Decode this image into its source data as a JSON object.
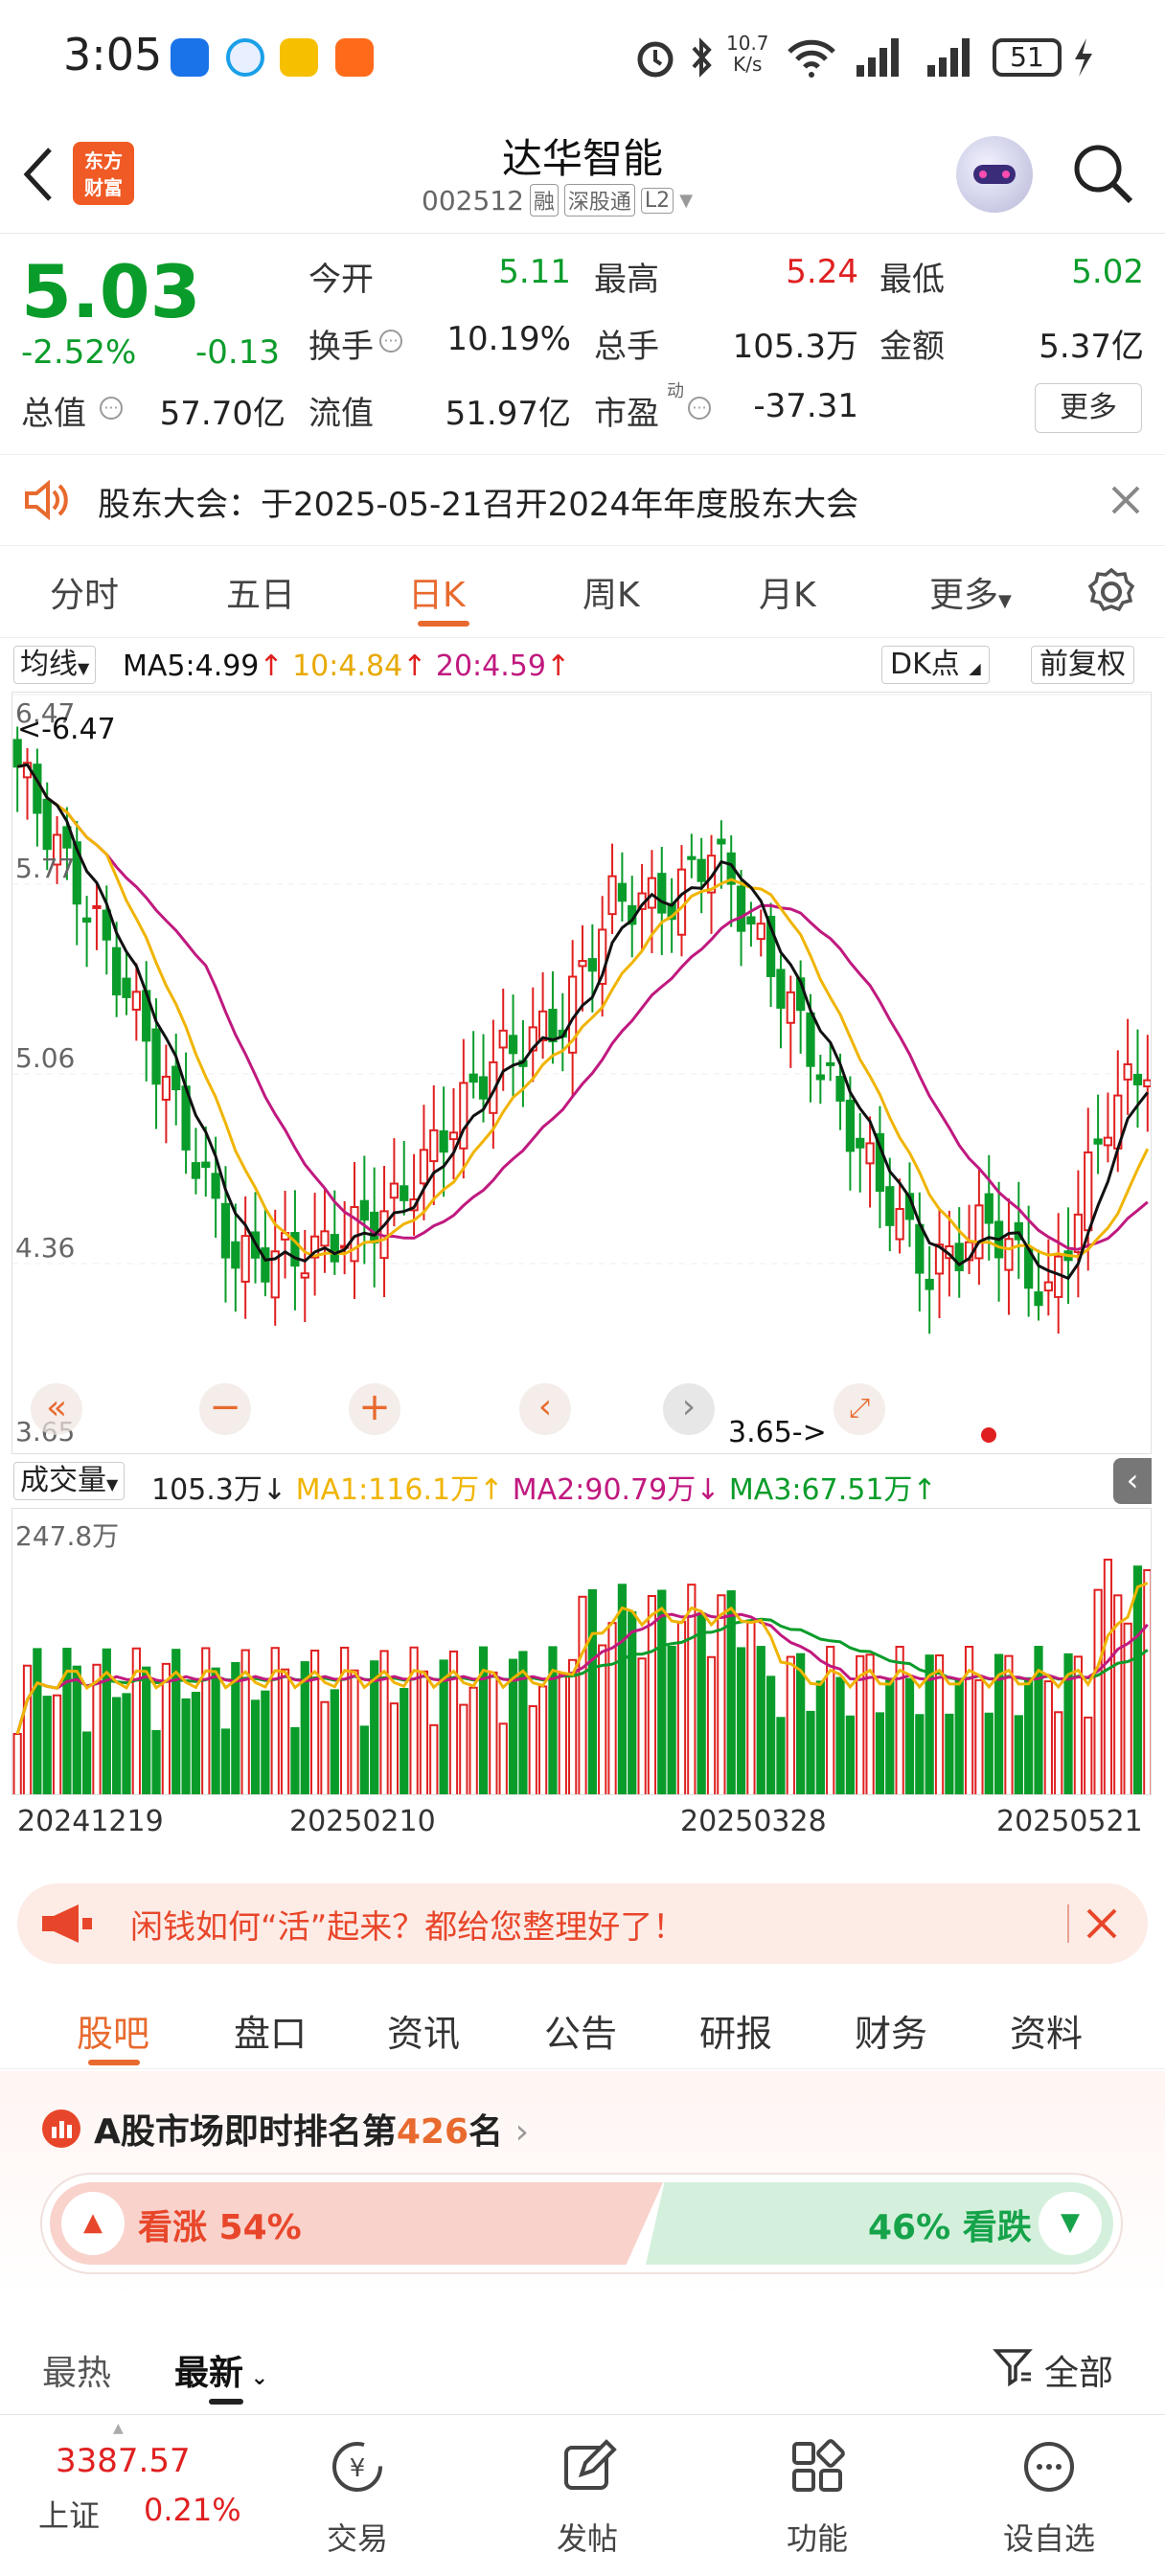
{
  "status_bar": {
    "time": "3:05",
    "net_speed_top": "10.7",
    "net_speed_bottom": "K/s",
    "battery": "51"
  },
  "header": {
    "back_icon": "chevron-left-icon",
    "logo_text_1": "东方",
    "logo_text_2": "财富",
    "title": "达华智能",
    "code": "002512",
    "tag_rong": "融",
    "tag_sgt": "深股通",
    "tag_l2": "L2"
  },
  "quote": {
    "price": "5.03",
    "change_pct": "-2.52%",
    "change": "-0.13",
    "open_label": "今开",
    "open": "5.11",
    "high_label": "最高",
    "high": "5.24",
    "low_label": "最低",
    "low": "5.02",
    "turnover_label": "换手",
    "turnover": "10.19%",
    "volume_label": "总手",
    "volume": "105.3万",
    "amount_label": "金额",
    "amount": "5.37亿",
    "mktcap_label": "总值",
    "mktcap": "57.70亿",
    "float_label": "流值",
    "float": "51.97亿",
    "pe_label": "市盈",
    "pe_sup": "动",
    "pe": "-37.31",
    "more_label": "更多"
  },
  "notice": {
    "text": "股东大会：于2025-05-21召开2024年年度股东大会"
  },
  "tabs": [
    {
      "label": "分时"
    },
    {
      "label": "五日"
    },
    {
      "label": "日K"
    },
    {
      "label": "周K"
    },
    {
      "label": "月K"
    },
    {
      "label": "更多"
    }
  ],
  "ma_bar": {
    "selector": "均线",
    "ma5": "MA5:4.99",
    "ma10": "10:4.84",
    "ma20": "20:4.59",
    "arrow": "↑",
    "dk": "DK点",
    "adjust": "前复权"
  },
  "kline": {
    "top_label": "6.47",
    "max_label": "<-6.47",
    "mid_label": "5.77",
    "mid2_label": "5.06",
    "low_axis": "4.36",
    "bottom_label": "3.65",
    "min_label": "3.65->",
    "colors": {
      "up": "#e02020",
      "down": "#0a9c2a",
      "ma5": "#111111",
      "ma10": "#f0b400",
      "ma20": "#c0197f"
    }
  },
  "volume_bar": {
    "selector": "成交量",
    "vol": "105.3万",
    "vol_arrow": "↓",
    "ma1": "MA1:116.1万",
    "ma1_arrow": "↑",
    "ma2": "MA2:90.79万",
    "ma2_arrow": "↓",
    "ma3": "MA3:67.51万",
    "ma3_arrow": "↑",
    "top_label": "247.8万"
  },
  "dates": [
    "20241219",
    "20250210",
    "20250328",
    "20250521"
  ],
  "ad": {
    "text": "闲钱如何“活”起来？都给您整理好了！"
  },
  "subtabs": [
    {
      "label": "股吧"
    },
    {
      "label": "盘口"
    },
    {
      "label": "资讯"
    },
    {
      "label": "公告"
    },
    {
      "label": "研报"
    },
    {
      "label": "财务"
    },
    {
      "label": "资料"
    }
  ],
  "rank": {
    "prefix": "A股市场即时排名第",
    "num": "426",
    "suffix": "名",
    "bull": "看涨 54%",
    "bear": "46% 看跌",
    "bull_pct": 54
  },
  "sort": {
    "hot": "最热",
    "new": "最新",
    "filter": "全部"
  },
  "bottom_nav": {
    "index_value": "3387.57",
    "index_name": "上证",
    "index_pct": "0.21%",
    "trade": "交易",
    "post": "发帖",
    "func": "功能",
    "watch": "设自选"
  }
}
